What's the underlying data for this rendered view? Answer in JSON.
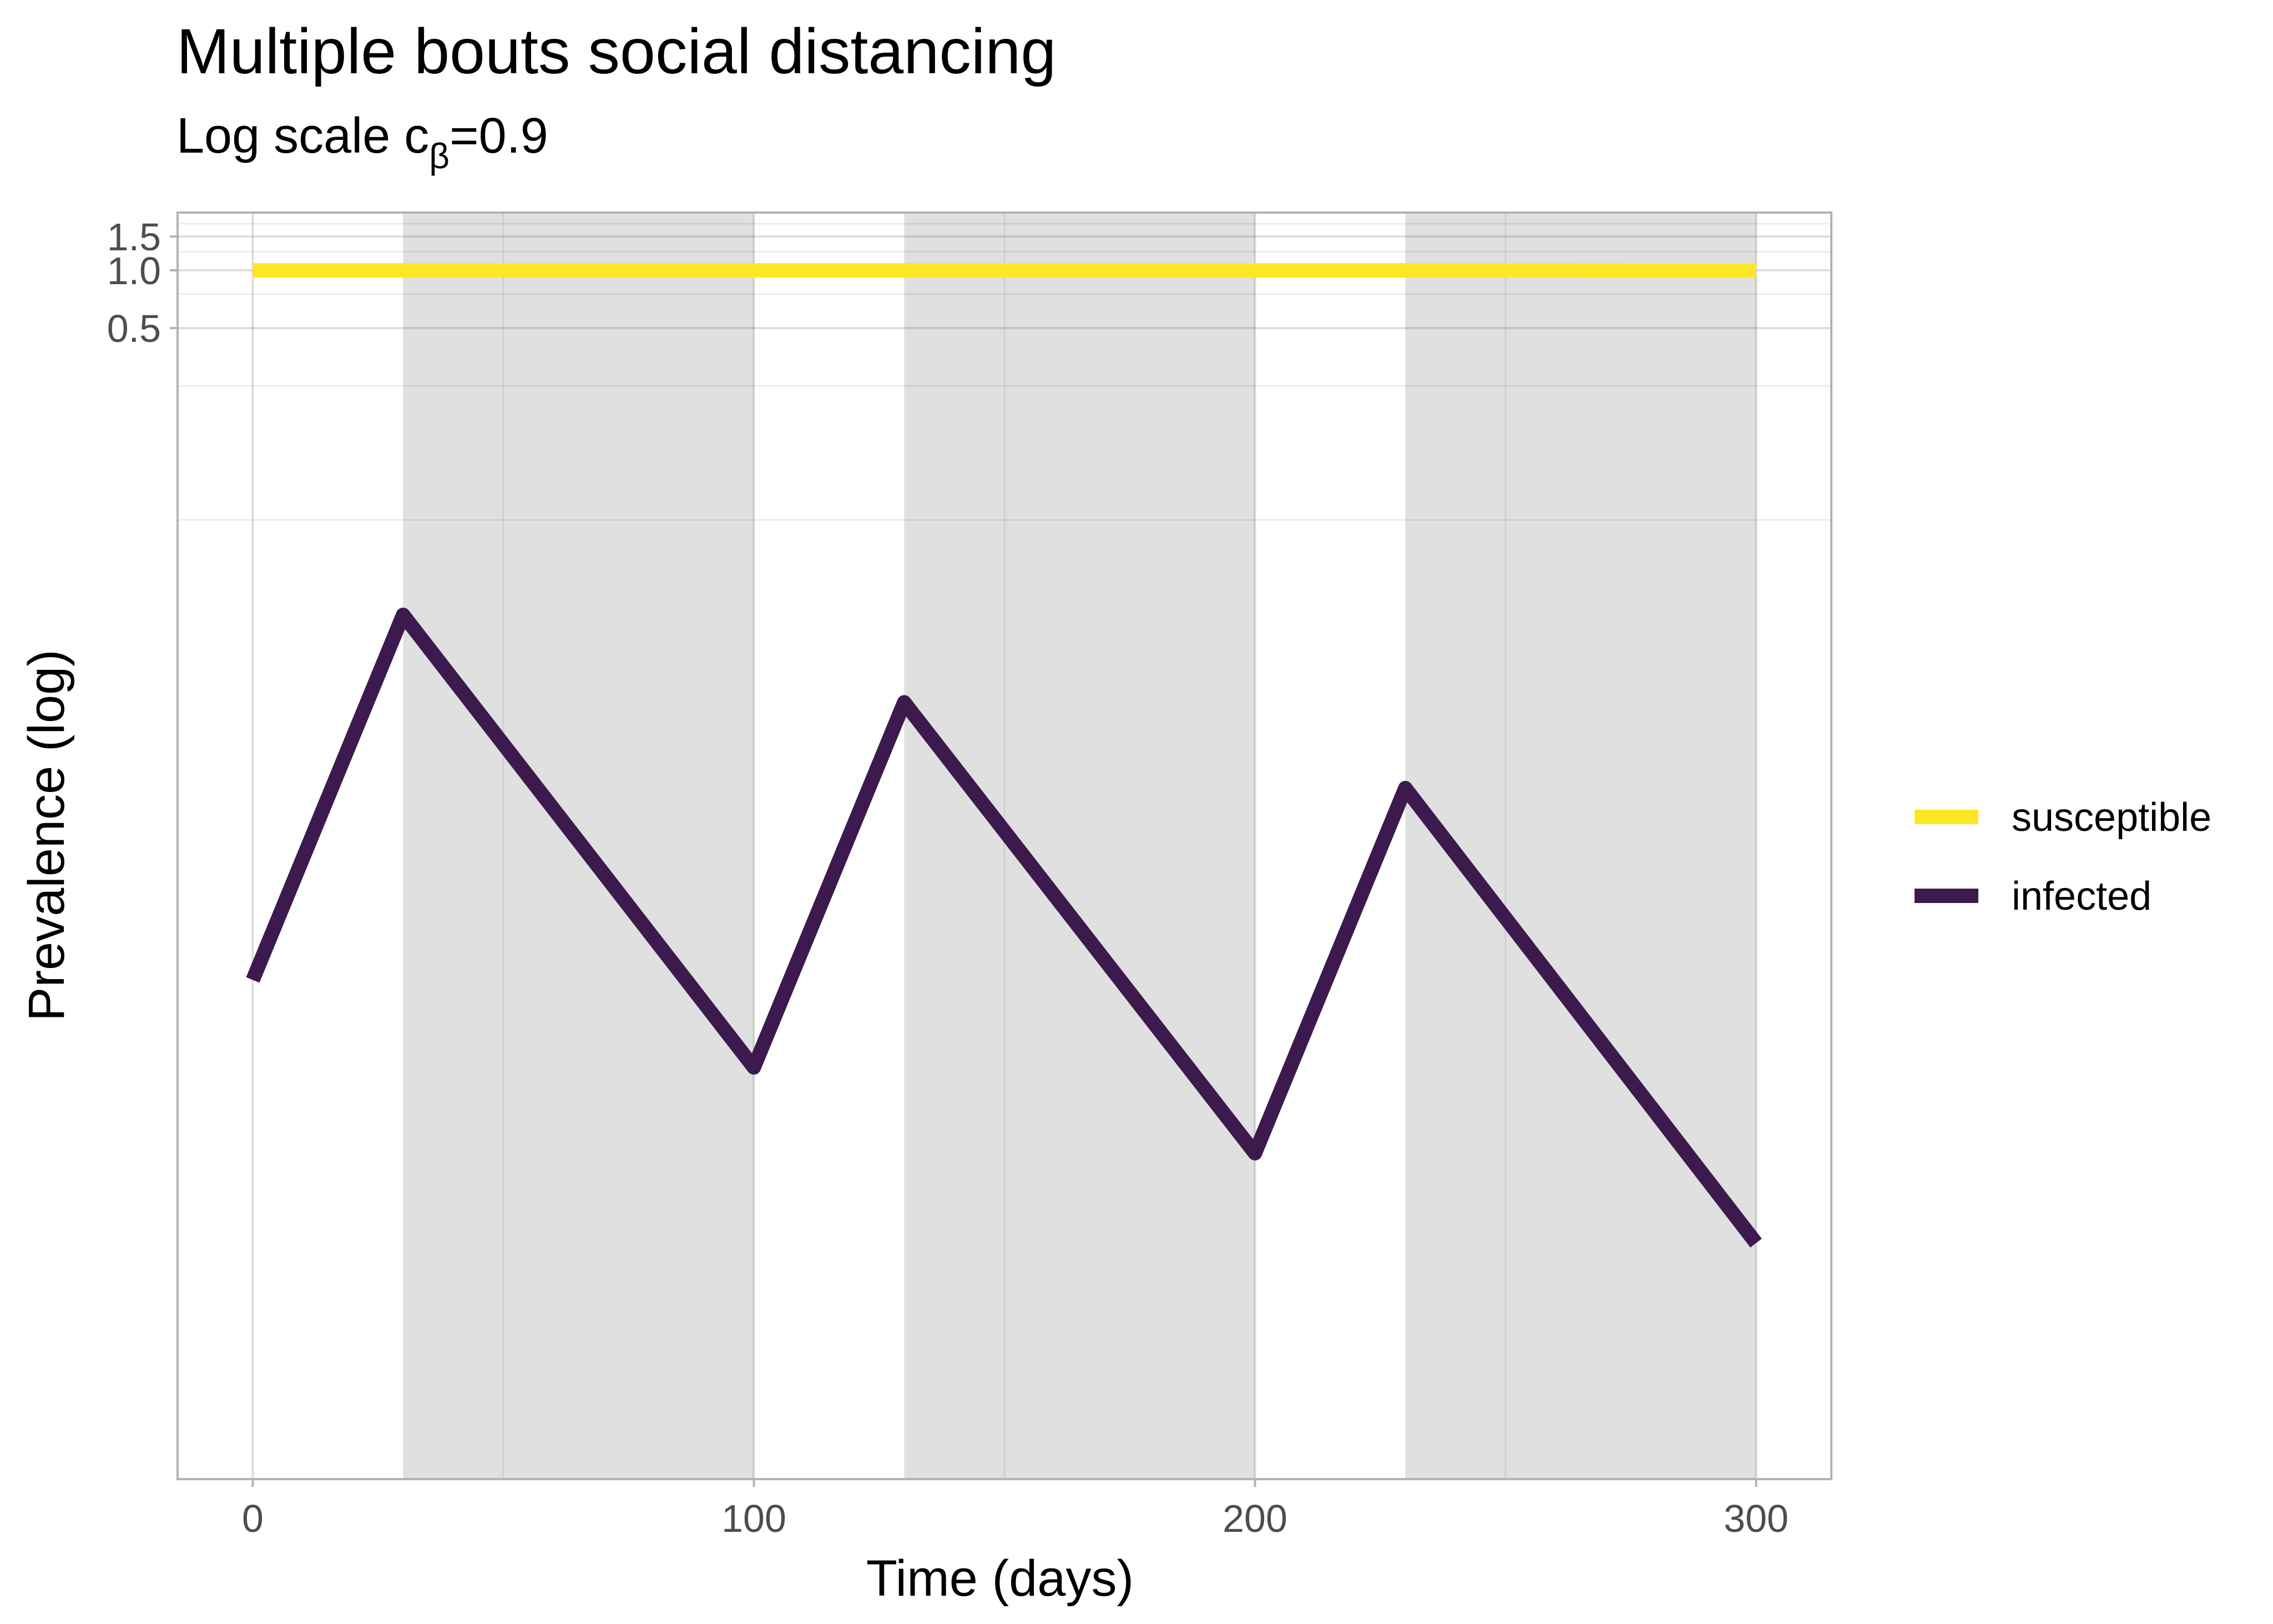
{
  "chart_data": {
    "type": "line",
    "title": "Multiple bouts social distancing",
    "subtitle_prefix": "Log scale c",
    "subtitle_sub": "β",
    "subtitle_suffix": "=0.9",
    "xlabel": "Time (days)",
    "ylabel": "Prevalence (log)",
    "xlim": [
      -15,
      315
    ],
    "x_ticks": [
      0,
      100,
      200,
      300
    ],
    "x_tick_labels": [
      "0",
      "100",
      "200",
      "300"
    ],
    "y_scale": "log10",
    "ylim": [
      5e-07,
      2.0
    ],
    "y_ticks": [
      0.5,
      1.0,
      1.5
    ],
    "y_tick_labels": [
      "0.5",
      "1.0",
      "1.5"
    ],
    "y_minor_ticks": [
      0.25,
      0.75,
      1.25
    ],
    "grid": true,
    "legend_position": "right",
    "shaded_intervals": [
      [
        30,
        100
      ],
      [
        130,
        200
      ],
      [
        230,
        300
      ]
    ],
    "shade_color": "#e0e0e0",
    "series": [
      {
        "name": "susceptible",
        "color": "#fde725",
        "x": [
          0,
          300
        ],
        "y": [
          1.0,
          0.999
        ]
      },
      {
        "name": "infected",
        "color": "#3d1a4e",
        "x": [
          0,
          30,
          100,
          130,
          200,
          230,
          300
        ],
        "y": [
          0.0002,
          0.016,
          7e-05,
          0.0056,
          2.5e-05,
          0.002,
          8.5e-06
        ]
      }
    ]
  }
}
